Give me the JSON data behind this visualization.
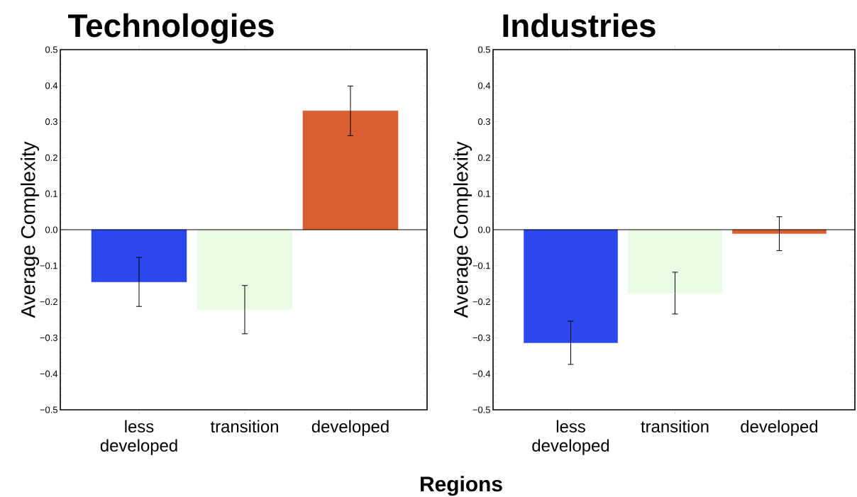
{
  "chart_data": [
    {
      "type": "bar",
      "title": "Technologies",
      "ylabel": "Average Complexity",
      "xlabel": "Regions",
      "categories": [
        "less developed",
        "transition",
        "developed"
      ],
      "values": [
        -0.145,
        -0.222,
        0.33
      ],
      "errors": [
        0.068,
        0.067,
        0.069
      ],
      "colors": [
        "#2b47ee",
        "#ebfce6",
        "#d95f33"
      ],
      "ylim": [
        -0.5,
        0.5
      ],
      "yticks": [
        {
          "value": -0.5,
          "label": "−0.5"
        },
        {
          "value": -0.4,
          "label": "−0.4"
        },
        {
          "value": -0.3,
          "label": "−0.3"
        },
        {
          "value": -0.2,
          "label": "−0.2"
        },
        {
          "value": -0.1,
          "label": "−0.1"
        },
        {
          "value": 0,
          "label": "0.0"
        },
        0.1,
        0.2,
        0.3,
        0.4,
        0.5
      ],
      "ref_lines": [
        {
          "axis": "y",
          "value": 0,
          "color": "#000000"
        }
      ]
    },
    {
      "type": "bar",
      "title": "Industries",
      "ylabel": "Average Complexity",
      "categories": [
        "less developed",
        "transition",
        "developed"
      ],
      "values": [
        -0.314,
        -0.176,
        -0.011
      ],
      "errors": [
        0.06,
        0.058,
        0.047
      ],
      "colors": [
        "#2b47ee",
        "#ebfce6",
        "#d95f33"
      ],
      "ylim": [
        -0.5,
        0.5
      ],
      "yticks": [
        {
          "value": -0.5,
          "label": "−0.5"
        },
        {
          "value": -0.4,
          "label": "−0.4"
        },
        {
          "value": -0.3,
          "label": "−0.3"
        },
        {
          "value": -0.2,
          "label": "−0.2"
        },
        {
          "value": -0.1,
          "label": "−0.1"
        },
        {
          "value": 0,
          "label": "0.0"
        },
        0.1,
        0.2,
        0.3,
        0.4,
        0.5
      ],
      "ref_lines": [
        {
          "axis": "y",
          "value": 0,
          "color": "#000000"
        }
      ]
    }
  ]
}
